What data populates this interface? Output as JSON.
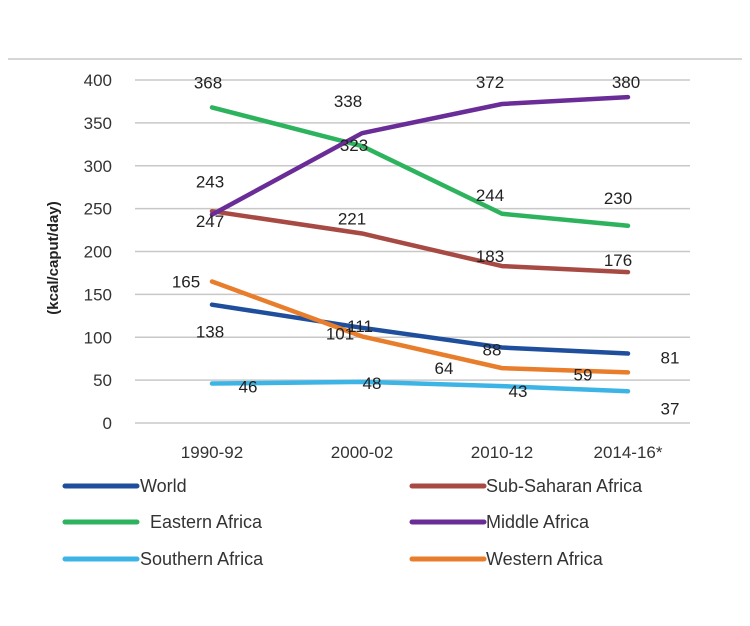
{
  "chart_data": {
    "type": "line",
    "ylabel": "(kcal/caput/day)",
    "xlabel": "",
    "categories": [
      "1990-92",
      "2000-02",
      "2010-12",
      "2014-16*"
    ],
    "ylim": [
      0,
      400
    ],
    "yticks": [
      0,
      50,
      100,
      150,
      200,
      250,
      300,
      350,
      400
    ],
    "grid": true,
    "legend_position": "bottom",
    "series": [
      {
        "name": "World",
        "color": "#1f4e9c",
        "values": [
          138,
          111,
          88,
          81
        ]
      },
      {
        "name": "Sub-Saharan Africa",
        "color": "#a84a44",
        "values": [
          247,
          221,
          183,
          176
        ]
      },
      {
        "name": "Eastern Africa",
        "color": "#2db35d",
        "values": [
          368,
          323,
          244,
          230
        ]
      },
      {
        "name": "Middle Africa",
        "color": "#6a2c97",
        "values": [
          243,
          338,
          372,
          380
        ]
      },
      {
        "name": "Southern Africa",
        "color": "#3cb4e6",
        "values": [
          46,
          48,
          43,
          37
        ]
      },
      {
        "name": "Western Africa",
        "color": "#e87d2c",
        "values": [
          165,
          101,
          64,
          59
        ]
      }
    ]
  }
}
